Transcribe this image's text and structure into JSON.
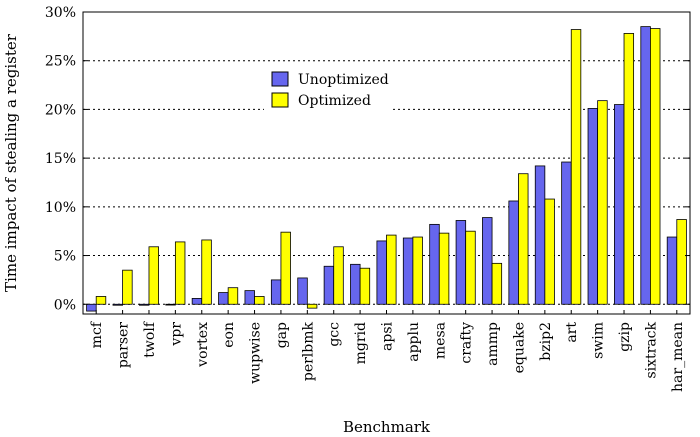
{
  "chart_data": {
    "type": "bar",
    "title": "",
    "xlabel": "Benchmark",
    "ylabel": "Time impact of stealing a register",
    "ylim": [
      -1,
      30
    ],
    "yticks": [
      0,
      5,
      10,
      15,
      20,
      25,
      30
    ],
    "ytick_labels": [
      "0%",
      "5%",
      "10%",
      "15%",
      "20%",
      "25%",
      "30%"
    ],
    "grid": "horizontal dotted",
    "legend_position": "upper-left-center",
    "categories": [
      "mcf",
      "parser",
      "twolf",
      "vpr",
      "vortex",
      "eon",
      "wupwise",
      "gap",
      "perlbmk",
      "gcc",
      "mgrid",
      "apsi",
      "applu",
      "mesa",
      "crafty",
      "ammp",
      "equake",
      "bzip2",
      "art",
      "swim",
      "gzip",
      "sixtrack",
      "har_mean"
    ],
    "series": [
      {
        "name": "Unoptimized",
        "color": "#6666ee",
        "values": [
          -0.7,
          -0.1,
          -0.1,
          0.0,
          0.6,
          1.2,
          1.4,
          2.5,
          2.7,
          3.9,
          4.1,
          6.5,
          6.8,
          8.2,
          8.6,
          8.9,
          10.6,
          14.2,
          14.6,
          20.1,
          20.5,
          28.5,
          6.9
        ]
      },
      {
        "name": "Optimized",
        "color": "#ffff00",
        "values": [
          0.8,
          3.5,
          5.9,
          6.4,
          6.6,
          1.7,
          0.8,
          7.4,
          -0.4,
          5.9,
          3.7,
          7.1,
          6.9,
          7.3,
          7.5,
          4.2,
          13.4,
          10.8,
          28.2,
          20.9,
          27.8,
          28.3,
          8.7
        ]
      }
    ]
  }
}
